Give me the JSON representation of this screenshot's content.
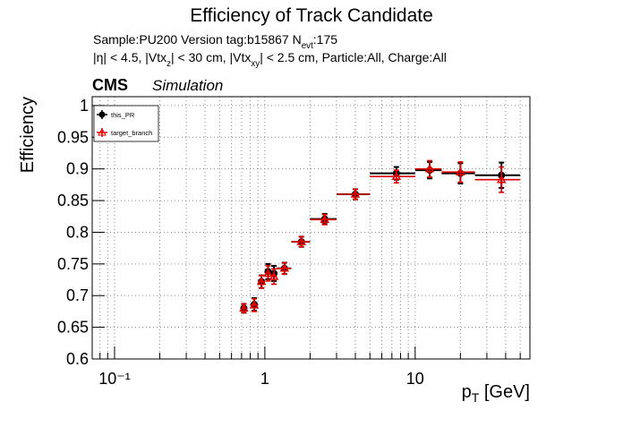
{
  "chart_data": {
    "type": "errorbar",
    "title": "Efficiency of Track Candidate",
    "subtitle": [
      {
        "text": "Sample:PU200   Version tag:b15867  N"
      },
      {
        "sub": "evt"
      },
      {
        "text": ":175"
      }
    ],
    "selection": [
      {
        "text": "|η| < 4.5, |Vtx"
      },
      {
        "sub": "z"
      },
      {
        "text": "| < 30 cm, |Vtx"
      },
      {
        "sub": "xy"
      },
      {
        "text": "| < 2.5 cm, Particle:All, Charge:All"
      }
    ],
    "experiment": "CMS",
    "label": "Simulation",
    "x_label": [
      {
        "text": "p"
      },
      {
        "sub": "T"
      },
      {
        "text": " [GeV]"
      }
    ],
    "y_label": "Efficiency",
    "x": [
      0.725,
      0.85,
      0.95,
      1.05,
      1.15,
      1.35,
      1.75,
      2.5,
      4,
      7.5,
      12.5,
      20,
      37.5
    ],
    "xerr": [
      0.025,
      0.05,
      0.05,
      0.05,
      0.05,
      0.15,
      0.25,
      0.5,
      1,
      2.5,
      2.5,
      5,
      12.5
    ],
    "series": [
      {
        "name": "this_PR",
        "color": "#000000",
        "marker": "circle",
        "values": [
          0.68,
          0.686,
          0.722,
          0.738,
          0.735,
          0.743,
          0.785,
          0.821,
          0.86,
          0.893,
          0.898,
          0.893,
          0.89
        ],
        "yerr": [
          0.007,
          0.01,
          0.01,
          0.012,
          0.012,
          0.009,
          0.008,
          0.008,
          0.008,
          0.01,
          0.013,
          0.016,
          0.02
        ]
      },
      {
        "name": "target_branch",
        "color": "#e00000",
        "marker": "triangle",
        "values": [
          0.68,
          0.685,
          0.722,
          0.735,
          0.73,
          0.743,
          0.785,
          0.82,
          0.86,
          0.888,
          0.9,
          0.895,
          0.883
        ],
        "yerr": [
          0.007,
          0.01,
          0.01,
          0.012,
          0.012,
          0.009,
          0.008,
          0.008,
          0.008,
          0.01,
          0.013,
          0.016,
          0.02
        ]
      }
    ],
    "xscale": "log",
    "xlim": [
      0.071,
      58
    ],
    "ylim": [
      0.6,
      1.014
    ],
    "xticks": [
      {
        "value": 0.1,
        "label": "10⁻¹"
      },
      1,
      10
    ],
    "xminorticks": [
      0.08,
      0.09,
      0.2,
      0.3,
      0.4,
      0.5,
      0.6,
      0.7,
      0.8,
      0.9,
      2,
      3,
      4,
      5,
      6,
      7,
      8,
      9,
      20,
      30,
      40,
      50
    ],
    "yticks": [
      0.6,
      0.65,
      0.7,
      0.75,
      0.8,
      0.85,
      0.9,
      0.95,
      1
    ],
    "grid": true,
    "legend": "upper left"
  }
}
